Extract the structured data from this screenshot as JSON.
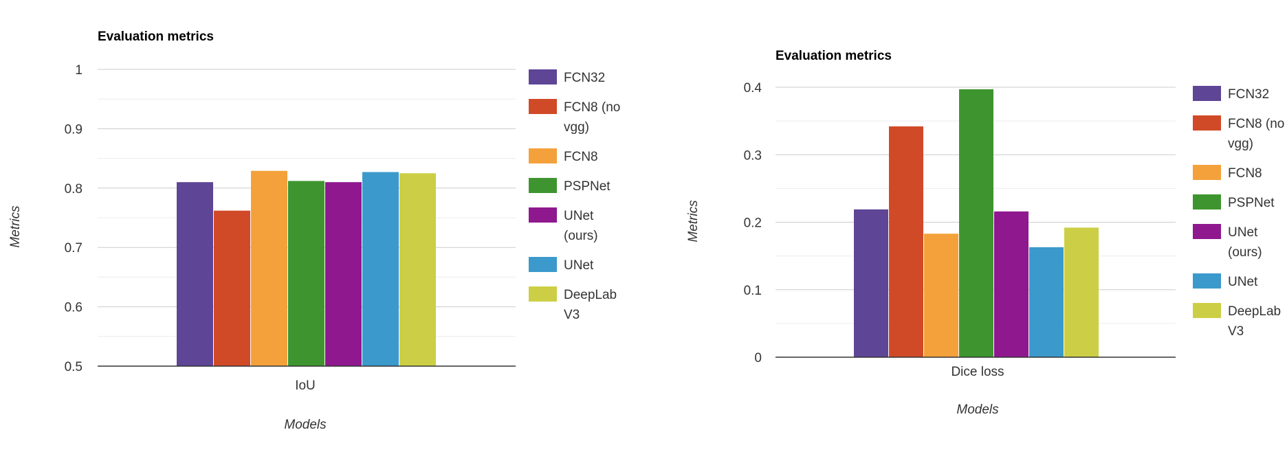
{
  "chart_data": [
    {
      "type": "bar",
      "title": "Evaluation metrics",
      "xlabel": "Models",
      "ylabel": "Metrics",
      "categories": [
        "IoU"
      ],
      "ylim": [
        0.5,
        1
      ],
      "yticks": [
        "0.5",
        "0.6",
        "0.7",
        "0.8",
        "0.9",
        "1"
      ],
      "grid": true,
      "legend_position": "right",
      "series": [
        {
          "name": "FCN32",
          "legend_lines": [
            "FCN32"
          ],
          "color": "#5e4596",
          "values": [
            0.81
          ]
        },
        {
          "name": "FCN8 (no vgg)",
          "legend_lines": [
            "FCN8 (no",
            "vgg)"
          ],
          "color": "#d14a27",
          "values": [
            0.762
          ]
        },
        {
          "name": "FCN8",
          "legend_lines": [
            "FCN8"
          ],
          "color": "#f4a13b",
          "values": [
            0.829
          ]
        },
        {
          "name": "PSPNet",
          "legend_lines": [
            "PSPNet"
          ],
          "color": "#3e952f",
          "values": [
            0.812
          ]
        },
        {
          "name": "UNet (ours)",
          "legend_lines": [
            "UNet",
            "(ours)"
          ],
          "color": "#8f188f",
          "values": [
            0.81
          ]
        },
        {
          "name": "UNet",
          "legend_lines": [
            "UNet"
          ],
          "color": "#3b9acb",
          "values": [
            0.827
          ]
        },
        {
          "name": "DeepLab V3",
          "legend_lines": [
            "DeepLab",
            "V3"
          ],
          "color": "#cccf45",
          "values": [
            0.825
          ]
        }
      ]
    },
    {
      "type": "bar",
      "title": "Evaluation metrics",
      "xlabel": "Models",
      "ylabel": "Metrics",
      "categories": [
        "Dice loss"
      ],
      "ylim": [
        0,
        0.4
      ],
      "yticks": [
        "0",
        "0.1",
        "0.2",
        "0.3",
        "0.4"
      ],
      "grid": true,
      "legend_position": "right",
      "series": [
        {
          "name": "FCN32",
          "legend_lines": [
            "FCN32"
          ],
          "color": "#5e4596",
          "values": [
            0.219
          ]
        },
        {
          "name": "FCN8 (no vgg)",
          "legend_lines": [
            "FCN8 (no",
            "vgg)"
          ],
          "color": "#d14a27",
          "values": [
            0.342
          ]
        },
        {
          "name": "FCN8",
          "legend_lines": [
            "FCN8"
          ],
          "color": "#f4a13b",
          "values": [
            0.183
          ]
        },
        {
          "name": "PSPNet",
          "legend_lines": [
            "PSPNet"
          ],
          "color": "#3e952f",
          "values": [
            0.397
          ]
        },
        {
          "name": "UNet (ours)",
          "legend_lines": [
            "UNet",
            "(ours)"
          ],
          "color": "#8f188f",
          "values": [
            0.216
          ]
        },
        {
          "name": "UNet",
          "legend_lines": [
            "UNet"
          ],
          "color": "#3b9acb",
          "values": [
            0.163
          ]
        },
        {
          "name": "DeepLab V3",
          "legend_lines": [
            "DeepLab",
            "V3"
          ],
          "color": "#cccf45",
          "values": [
            0.192
          ]
        }
      ]
    }
  ]
}
